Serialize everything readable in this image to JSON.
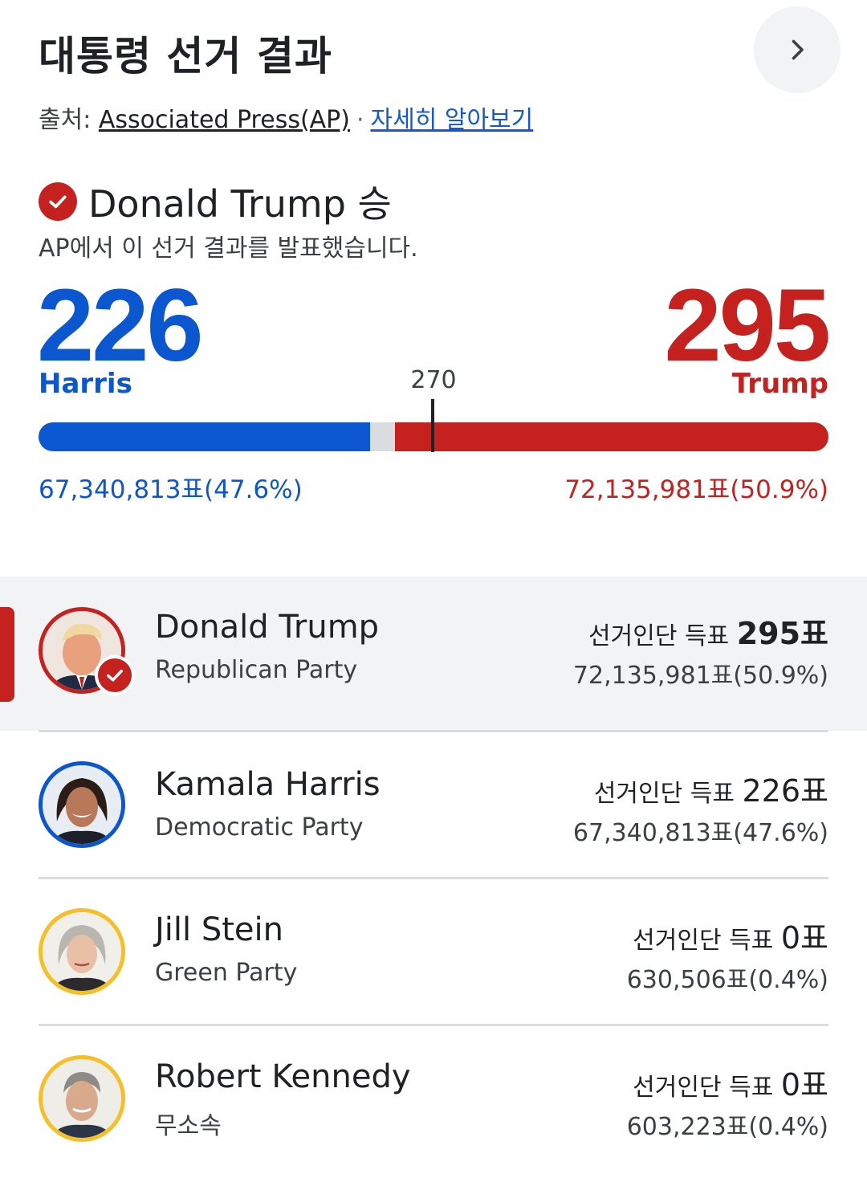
{
  "header": {
    "title": "대통령 선거 결과",
    "source_prefix": "출처: ",
    "source_name": "Associated Press(AP)",
    "separator": "·",
    "learn_more": "자세히 알아보기",
    "more_icon": "chevron-right-icon"
  },
  "winner": {
    "label": "Donald Trump 승",
    "subtitle": "AP에서 이 선거 결과를 발표했습니다."
  },
  "tally": {
    "harris_ev": "226",
    "trump_ev": "295",
    "harris_name": "Harris",
    "trump_name": "Trump",
    "threshold": "270",
    "total_ev": 538,
    "harris_votes": "67,340,813표(47.6%)",
    "trump_votes": "72,135,981표(50.9%)"
  },
  "colors": {
    "democrat": "#0b57d0",
    "republican": "#c5221f",
    "other": "#f6bf26",
    "uncalled": "#dadce0"
  },
  "candidates": [
    {
      "name": "Donald Trump",
      "party": "Republican Party",
      "ev_label": "선거인단 득표 ",
      "ev": "295표",
      "votes": "72,135,981표(50.9%)",
      "winner": true
    },
    {
      "name": "Kamala Harris",
      "party": "Democratic Party",
      "ev_label": "선거인단 득표 ",
      "ev": "226표",
      "votes": "67,340,813표(47.6%)",
      "winner": false
    },
    {
      "name": "Jill Stein",
      "party": "Green Party",
      "ev_label": "선거인단 득표 ",
      "ev": "0표",
      "votes": "630,506표(0.4%)",
      "winner": false
    },
    {
      "name": "Robert Kennedy",
      "party": "무소속",
      "ev_label": "선거인단 득표 ",
      "ev": "0표",
      "votes": "603,223표(0.4%)",
      "winner": false
    }
  ]
}
